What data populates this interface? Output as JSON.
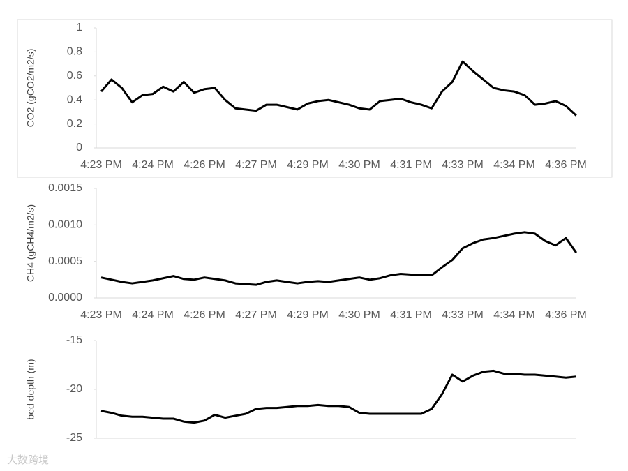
{
  "chart_data": [
    {
      "type": "line",
      "y_label": "CO2 (gCO2/m2/s)",
      "color": "#000000",
      "categories": [
        "4:23 PM",
        null,
        null,
        null,
        null,
        "4:24 PM",
        null,
        null,
        null,
        null,
        "4:26 PM",
        null,
        null,
        null,
        null,
        "4:27 PM",
        null,
        null,
        null,
        null,
        "4:29 PM",
        null,
        null,
        null,
        null,
        "4:30 PM",
        null,
        null,
        null,
        null,
        "4:31 PM",
        null,
        null,
        null,
        null,
        "4:33 PM",
        null,
        null,
        null,
        null,
        "4:34 PM",
        null,
        null,
        null,
        null,
        "4:36 PM",
        null
      ],
      "values": [
        0.47,
        0.57,
        0.5,
        0.38,
        0.44,
        0.45,
        0.51,
        0.47,
        0.55,
        0.46,
        0.49,
        0.5,
        0.4,
        0.33,
        0.32,
        0.31,
        0.36,
        0.36,
        0.34,
        0.32,
        0.37,
        0.39,
        0.4,
        0.38,
        0.36,
        0.33,
        0.32,
        0.39,
        0.4,
        0.41,
        0.38,
        0.36,
        0.33,
        0.47,
        0.55,
        0.72,
        0.64,
        0.57,
        0.5,
        0.48,
        0.47,
        0.44,
        0.36,
        0.37,
        0.39,
        0.35,
        0.27
      ],
      "ylim": [
        0,
        1
      ],
      "yticks": [
        0,
        0.2,
        0.4,
        0.6,
        0.8,
        1
      ]
    },
    {
      "type": "line",
      "y_label": "CH4 (gCH4/m2/s)",
      "color": "#000000",
      "categories": [
        "4:23 PM",
        null,
        null,
        null,
        null,
        "4:24 PM",
        null,
        null,
        null,
        null,
        "4:26 PM",
        null,
        null,
        null,
        null,
        "4:27 PM",
        null,
        null,
        null,
        null,
        "4:29 PM",
        null,
        null,
        null,
        null,
        "4:30 PM",
        null,
        null,
        null,
        null,
        "4:31 PM",
        null,
        null,
        null,
        null,
        "4:33 PM",
        null,
        null,
        null,
        null,
        "4:34 PM",
        null,
        null,
        null,
        null,
        "4:36 PM",
        null
      ],
      "values": [
        0.00028,
        0.00025,
        0.00022,
        0.0002,
        0.00022,
        0.00024,
        0.00027,
        0.0003,
        0.00026,
        0.00025,
        0.00028,
        0.00026,
        0.00024,
        0.0002,
        0.00019,
        0.00018,
        0.00022,
        0.00024,
        0.00022,
        0.0002,
        0.00022,
        0.00023,
        0.00022,
        0.00024,
        0.00026,
        0.00028,
        0.00025,
        0.00027,
        0.00031,
        0.00033,
        0.00032,
        0.00031,
        0.00031,
        0.00042,
        0.00052,
        0.00068,
        0.00075,
        0.0008,
        0.00082,
        0.00085,
        0.00088,
        0.0009,
        0.00088,
        0.00078,
        0.00072,
        0.00082,
        0.00062
      ],
      "ylim": [
        0,
        0.0015
      ],
      "yticks": [
        {
          "value": 0,
          "label": "0.0000"
        },
        {
          "value": 0.0005,
          "label": "0.0005"
        },
        {
          "value": 0.001,
          "label": "0.0010"
        },
        {
          "value": 0.0015,
          "label": "0.0015"
        }
      ]
    },
    {
      "type": "line",
      "y_label": "bed depth (m)",
      "color": "#000000",
      "values": [
        -22.2,
        -22.4,
        -22.7,
        -22.8,
        -22.8,
        -22.9,
        -23.0,
        -23.0,
        -23.3,
        -23.4,
        -23.2,
        -22.6,
        -22.9,
        -22.7,
        -22.5,
        -22.0,
        -21.9,
        -21.9,
        -21.8,
        -21.7,
        -21.7,
        -21.6,
        -21.7,
        -21.7,
        -21.8,
        -22.4,
        -22.5,
        -22.5,
        -22.5,
        -22.5,
        -22.5,
        -22.5,
        -22.0,
        -20.5,
        -18.5,
        -19.2,
        -18.6,
        -18.2,
        -18.1,
        -18.4,
        -18.4,
        -18.5,
        -18.5,
        -18.6,
        -18.7,
        -18.8,
        -18.7
      ],
      "ylim": [
        -25,
        -15
      ],
      "yticks": [
        -25,
        -20,
        -15
      ]
    }
  ],
  "watermark": "大数跨境"
}
